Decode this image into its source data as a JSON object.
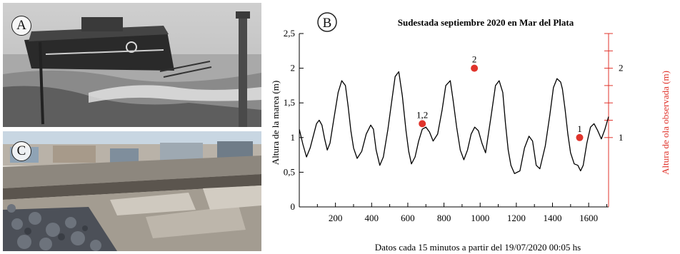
{
  "panels": {
    "a_label": "A",
    "b_label": "B",
    "c_label": "C"
  },
  "chart_data": {
    "type": "line",
    "title": "Sudestada septiembre 2020 en Mar del Plata",
    "xlabel": "Datos cada 15 minutos a partir del 19/07/2020 00:05 hs",
    "ylabel": "Altura de la marea (m)",
    "y2label": "Altura de ola observada (m)",
    "xlim": [
      0,
      1710
    ],
    "ylim": [
      0,
      2.5
    ],
    "xticks": [
      200,
      400,
      600,
      800,
      1000,
      1200,
      1400,
      1600
    ],
    "yticks": [
      0,
      0.5,
      1,
      1.5,
      2,
      2.5
    ],
    "ytick_labels": [
      "0",
      "0,5",
      "1",
      "1,5",
      "2",
      "2,5"
    ],
    "y2ticks": [
      {
        "value": 1,
        "label": "1"
      },
      {
        "value": 1.25,
        "label": ""
      },
      {
        "value": 1.5,
        "label": ""
      },
      {
        "value": 1.75,
        "label": ""
      },
      {
        "value": 2,
        "label": "2"
      },
      {
        "value": 2.25,
        "label": ""
      },
      {
        "value": 2.5,
        "label": ""
      }
    ],
    "series": [
      {
        "type": "line",
        "color": "#000000",
        "x": [
          0,
          20,
          40,
          60,
          80,
          95,
          110,
          125,
          140,
          155,
          170,
          190,
          215,
          235,
          255,
          270,
          285,
          300,
          320,
          345,
          370,
          395,
          410,
          425,
          445,
          465,
          490,
          510,
          530,
          550,
          570,
          590,
          605,
          620,
          640,
          660,
          680,
          700,
          720,
          740,
          765,
          790,
          810,
          835,
          850,
          870,
          890,
          910,
          930,
          950,
          970,
          990,
          1010,
          1030,
          1060,
          1085,
          1105,
          1125,
          1140,
          1155,
          1170,
          1190,
          1220,
          1245,
          1270,
          1290,
          1310,
          1330,
          1360,
          1385,
          1405,
          1425,
          1445,
          1455,
          1470,
          1485,
          1500,
          1520,
          1540,
          1555,
          1570,
          1590,
          1610,
          1630,
          1650,
          1670,
          1690,
          1710
        ],
        "y": [
          1.12,
          0.9,
          0.72,
          0.85,
          1.05,
          1.2,
          1.25,
          1.18,
          0.98,
          0.82,
          0.92,
          1.25,
          1.65,
          1.82,
          1.75,
          1.45,
          1.1,
          0.85,
          0.7,
          0.8,
          1.05,
          1.18,
          1.12,
          0.82,
          0.6,
          0.72,
          1.12,
          1.5,
          1.88,
          1.95,
          1.6,
          1.1,
          0.8,
          0.62,
          0.72,
          0.95,
          1.12,
          1.15,
          1.08,
          0.95,
          1.05,
          1.4,
          1.75,
          1.82,
          1.55,
          1.15,
          0.82,
          0.68,
          0.82,
          1.05,
          1.15,
          1.1,
          0.92,
          0.78,
          1.3,
          1.75,
          1.82,
          1.65,
          1.2,
          0.82,
          0.6,
          0.48,
          0.52,
          0.85,
          1.02,
          0.95,
          0.6,
          0.55,
          0.88,
          1.32,
          1.72,
          1.85,
          1.8,
          1.7,
          1.4,
          1.05,
          0.78,
          0.62,
          0.6,
          0.52,
          0.6,
          0.92,
          1.15,
          1.2,
          1.1,
          0.98,
          1.12,
          1.3
        ]
      },
      {
        "type": "scatter",
        "color": "#e0342c",
        "points": [
          {
            "x": 680,
            "y": 1.2,
            "label": "1,2"
          },
          {
            "x": 968,
            "y": 2.0,
            "label": "2"
          },
          {
            "x": 1550,
            "y": 1.0,
            "label": "1"
          }
        ]
      }
    ]
  }
}
